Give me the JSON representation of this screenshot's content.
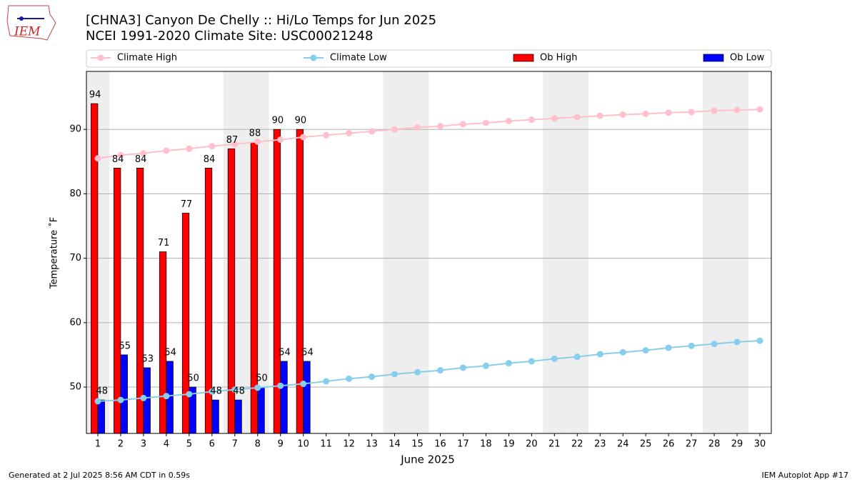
{
  "chart_data": {
    "type": "bar",
    "title": "[CHNA3] Canyon De Chelly :: Hi/Lo Temps for Jun 2025",
    "subtitle": "NCEI 1991-2020 Climate Site: USC00021248",
    "logo_text": "IEM",
    "xlabel": "June 2025",
    "ylabel": "Temperature ˚F",
    "footer_left": "Generated at 2 Jul 2025 8:56 AM CDT in 0.59s",
    "footer_right": "IEM Autoplot App #17",
    "x": [
      1,
      2,
      3,
      4,
      5,
      6,
      7,
      8,
      9,
      10,
      11,
      12,
      13,
      14,
      15,
      16,
      17,
      18,
      19,
      20,
      21,
      22,
      23,
      24,
      25,
      26,
      27,
      28,
      29,
      30
    ],
    "xlim": [
      0.5,
      30.5
    ],
    "xticks": [
      1,
      2,
      3,
      4,
      5,
      6,
      7,
      8,
      9,
      10,
      11,
      12,
      13,
      14,
      15,
      16,
      17,
      18,
      19,
      20,
      21,
      22,
      23,
      24,
      25,
      26,
      27,
      28,
      29,
      30
    ],
    "ylim": [
      42.8,
      99
    ],
    "yticks": [
      50,
      60,
      70,
      80,
      90
    ],
    "grid": true,
    "shaded_days": [
      1,
      7,
      8,
      14,
      15,
      21,
      22,
      28,
      29
    ],
    "shade_color": "#eeeeee",
    "series": [
      {
        "name": "Climate High",
        "type": "line",
        "color": "#ffc0cb",
        "values": [
          85.5,
          86.0,
          86.3,
          86.7,
          87.0,
          87.4,
          87.7,
          88.1,
          88.4,
          88.8,
          89.1,
          89.4,
          89.7,
          90.0,
          90.3,
          90.5,
          90.8,
          91.0,
          91.3,
          91.5,
          91.7,
          91.9,
          92.1,
          92.3,
          92.4,
          92.6,
          92.7,
          92.9,
          93.0,
          93.1
        ]
      },
      {
        "name": "Climate Low",
        "type": "line",
        "color": "#87ceeb",
        "values": [
          47.8,
          48.0,
          48.3,
          48.6,
          48.9,
          49.3,
          49.6,
          49.9,
          50.2,
          50.5,
          50.9,
          51.3,
          51.6,
          52.0,
          52.3,
          52.6,
          53.0,
          53.3,
          53.7,
          54.0,
          54.4,
          54.7,
          55.1,
          55.4,
          55.7,
          56.1,
          56.4,
          56.7,
          57.0,
          57.2
        ]
      },
      {
        "name": "Ob High",
        "type": "bar",
        "color": "#ff0000",
        "values": [
          94,
          84,
          84,
          71,
          77,
          84,
          87,
          88,
          90,
          90,
          null,
          null,
          null,
          null,
          null,
          null,
          null,
          null,
          null,
          null,
          null,
          null,
          null,
          null,
          null,
          null,
          null,
          null,
          null,
          null
        ]
      },
      {
        "name": "Ob Low",
        "type": "bar",
        "color": "#0000ff",
        "values": [
          48,
          55,
          53,
          54,
          50,
          48,
          48,
          50,
          54,
          54,
          null,
          null,
          null,
          null,
          null,
          null,
          null,
          null,
          null,
          null,
          null,
          null,
          null,
          null,
          null,
          null,
          null,
          null,
          null,
          null
        ]
      }
    ]
  }
}
